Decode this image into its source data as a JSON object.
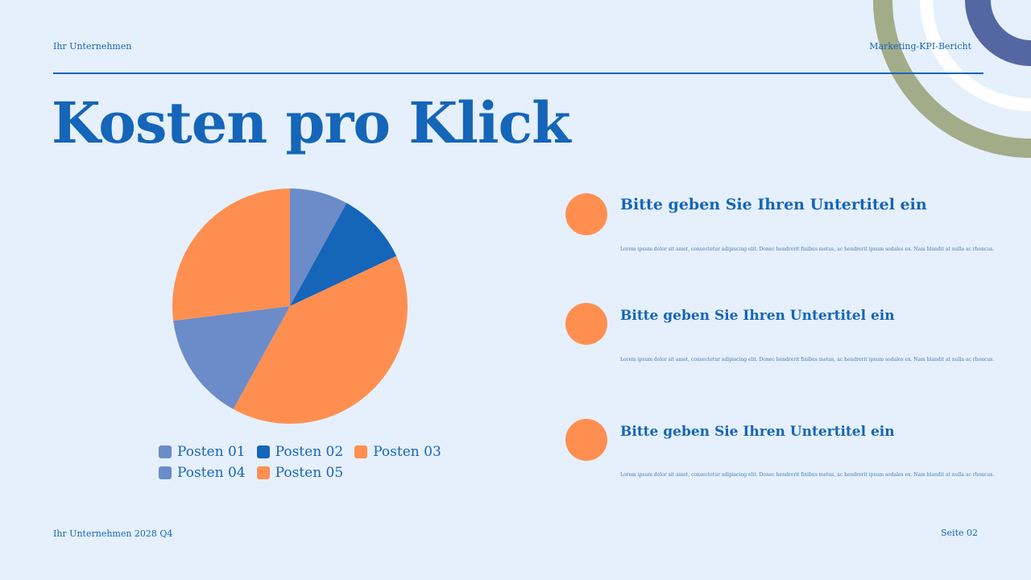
{
  "header": {
    "company": "Ihr Unternehmen",
    "report": "Marketing-KPI-Bericht"
  },
  "title": "Kosten pro Klick",
  "colors": {
    "accent": "#1565b8",
    "orange": "#ff8f50",
    "periwinkle": "#6b8cc9",
    "olive": "#a3ac88",
    "navy": "#5467a3",
    "background": "#e6f0fc"
  },
  "chart_data": {
    "type": "pie",
    "categories": [
      "Posten 01",
      "Posten 02",
      "Posten 03",
      "Posten 04",
      "Posten 05"
    ],
    "values": [
      8,
      10,
      40,
      15,
      27
    ],
    "colors": [
      "#6b8cc9",
      "#1565b8",
      "#ff8f50",
      "#6b8cc9",
      "#ff8f50"
    ],
    "legend": "bottom"
  },
  "items": [
    {
      "subtitle": "Bitte geben Sie Ihren Untertitel ein",
      "text": "Lorem ipsum dolor sit amet, consectetur adipiscing elit. Donec hendrerit finibus metus, ac hendrerit ipsum sodales ex. Nam blandit at nulla ac rhoncus."
    },
    {
      "subtitle": "Bitte geben Sie Ihren Untertitel ein",
      "text": "Lorem ipsum dolor sit amet, consectetur adipiscing elit. Donec hendrerit finibus metus, ac hendrerit ipsum sodales ex. Nam blandit at nulla ac rhoncus."
    },
    {
      "subtitle": "Bitte geben Sie Ihren Untertitel ein",
      "text": "Lorem ipsum dolor sit amet, consectetur adipiscing elit. Donec hendrerit finibus metus, ac hendrerit ipsum sodales ex. Nam blandit at nulla ac rhoncus."
    }
  ],
  "footer": {
    "left": "Ihr Unternehmen 2028 Q4",
    "right": "Seite 02"
  }
}
